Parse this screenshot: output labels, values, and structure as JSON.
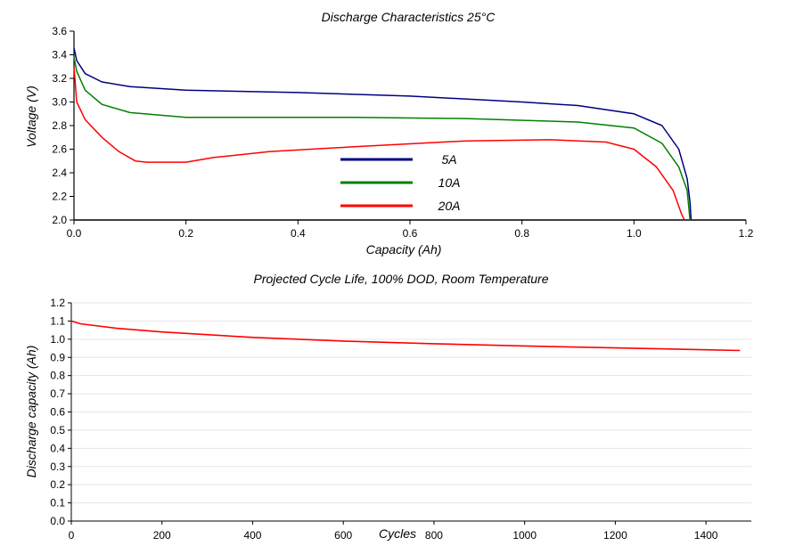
{
  "chart_data": [
    {
      "type": "line",
      "title": "Discharge Characteristics 25°C",
      "xlabel": "Capacity (Ah)",
      "ylabel": "Voltage (V)",
      "xlim": [
        0,
        1.2
      ],
      "ylim": [
        2.0,
        3.6
      ],
      "x_ticks": [
        "0.0",
        "0.2",
        "0.4",
        "0.6",
        "0.8",
        "1.0",
        "1.2"
      ],
      "y_ticks": [
        "2.0",
        "2.2",
        "2.4",
        "2.6",
        "2.8",
        "3.0",
        "3.2",
        "3.4",
        "3.6"
      ],
      "grid": false,
      "legend_position": "center",
      "series": [
        {
          "name": "5A",
          "color": "#000080",
          "points": [
            [
              0.0,
              3.46
            ],
            [
              0.005,
              3.35
            ],
            [
              0.02,
              3.24
            ],
            [
              0.05,
              3.17
            ],
            [
              0.1,
              3.13
            ],
            [
              0.2,
              3.1
            ],
            [
              0.4,
              3.08
            ],
            [
              0.6,
              3.05
            ],
            [
              0.8,
              3.0
            ],
            [
              0.9,
              2.97
            ],
            [
              1.0,
              2.9
            ],
            [
              1.05,
              2.8
            ],
            [
              1.08,
              2.6
            ],
            [
              1.095,
              2.35
            ],
            [
              1.1,
              2.15
            ],
            [
              1.102,
              2.0
            ]
          ]
        },
        {
          "name": "10A",
          "color": "#008000",
          "points": [
            [
              0.0,
              3.38
            ],
            [
              0.005,
              3.26
            ],
            [
              0.02,
              3.1
            ],
            [
              0.05,
              2.98
            ],
            [
              0.1,
              2.91
            ],
            [
              0.2,
              2.87
            ],
            [
              0.3,
              2.87
            ],
            [
              0.5,
              2.87
            ],
            [
              0.7,
              2.86
            ],
            [
              0.9,
              2.83
            ],
            [
              1.0,
              2.78
            ],
            [
              1.05,
              2.65
            ],
            [
              1.08,
              2.45
            ],
            [
              1.095,
              2.25
            ],
            [
              1.1,
              2.0
            ]
          ]
        },
        {
          "name": "20A",
          "color": "#ff0000",
          "points": [
            [
              0.0,
              3.3
            ],
            [
              0.005,
              3.0
            ],
            [
              0.02,
              2.85
            ],
            [
              0.05,
              2.7
            ],
            [
              0.08,
              2.58
            ],
            [
              0.11,
              2.5
            ],
            [
              0.13,
              2.49
            ],
            [
              0.2,
              2.49
            ],
            [
              0.25,
              2.53
            ],
            [
              0.35,
              2.58
            ],
            [
              0.5,
              2.62
            ],
            [
              0.7,
              2.67
            ],
            [
              0.85,
              2.68
            ],
            [
              0.95,
              2.66
            ],
            [
              1.0,
              2.6
            ],
            [
              1.04,
              2.45
            ],
            [
              1.07,
              2.25
            ],
            [
              1.085,
              2.05
            ],
            [
              1.09,
              2.0
            ]
          ]
        }
      ]
    },
    {
      "type": "line",
      "title": "Projected Cycle Life, 100% DOD, Room Temperature",
      "xlabel": "Cycles",
      "ylabel": "Discharge capacity (Ah)",
      "xlim": [
        0,
        1500
      ],
      "ylim": [
        0.0,
        1.2
      ],
      "x_ticks": [
        "0",
        "200",
        "400",
        "600",
        "800",
        "1000",
        "1200",
        "1400"
      ],
      "y_ticks": [
        "0.0",
        "0.1",
        "0.2",
        "0.3",
        "0.4",
        "0.5",
        "0.6",
        "0.7",
        "0.8",
        "0.9",
        "1.0",
        "1.1",
        "1.2"
      ],
      "grid": true,
      "series": [
        {
          "color": "#ff0000",
          "points": [
            [
              0,
              1.1
            ],
            [
              20,
              1.085
            ],
            [
              100,
              1.06
            ],
            [
              200,
              1.04
            ],
            [
              400,
              1.01
            ],
            [
              600,
              0.99
            ],
            [
              800,
              0.975
            ],
            [
              1000,
              0.963
            ],
            [
              1200,
              0.952
            ],
            [
              1400,
              0.942
            ],
            [
              1475,
              0.938
            ]
          ]
        }
      ]
    }
  ]
}
